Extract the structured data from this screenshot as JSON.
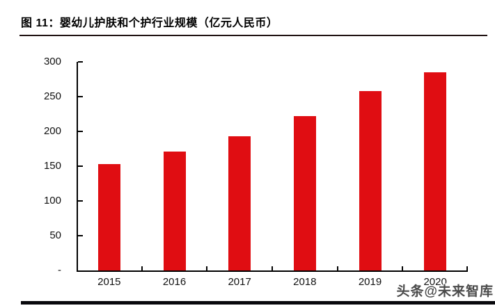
{
  "header": {
    "title": "图  11：婴幼儿护肤和个护行业规模（亿元人民币）"
  },
  "watermark": {
    "text": "头条@未来智库"
  },
  "colors": {
    "bar": "#e00d12",
    "axis": "#000000",
    "title_rule": "#201212",
    "bottom_rule": "#08080c",
    "watermark_text": "#4b4b4b"
  },
  "chart_data": {
    "type": "bar",
    "title": "婴幼儿护肤和个护行业规模（亿元人民币）",
    "figure_number": "图 11",
    "categories": [
      "2015",
      "2016",
      "2017",
      "2018",
      "2019",
      "2020"
    ],
    "values": [
      153,
      171,
      193,
      222,
      258,
      285
    ],
    "xlabel": "",
    "ylabel": "",
    "ylim": [
      0,
      300
    ],
    "y_ticks": [
      {
        "value": 0,
        "label": "-"
      },
      {
        "value": 50,
        "label": "50"
      },
      {
        "value": 100,
        "label": "100"
      },
      {
        "value": 150,
        "label": "150"
      },
      {
        "value": 200,
        "label": "200"
      },
      {
        "value": 250,
        "label": "250"
      },
      {
        "value": 300,
        "label": "300"
      }
    ],
    "grid": false,
    "legend": false,
    "bar_color": "#e00d12",
    "tick_style": "inside"
  }
}
